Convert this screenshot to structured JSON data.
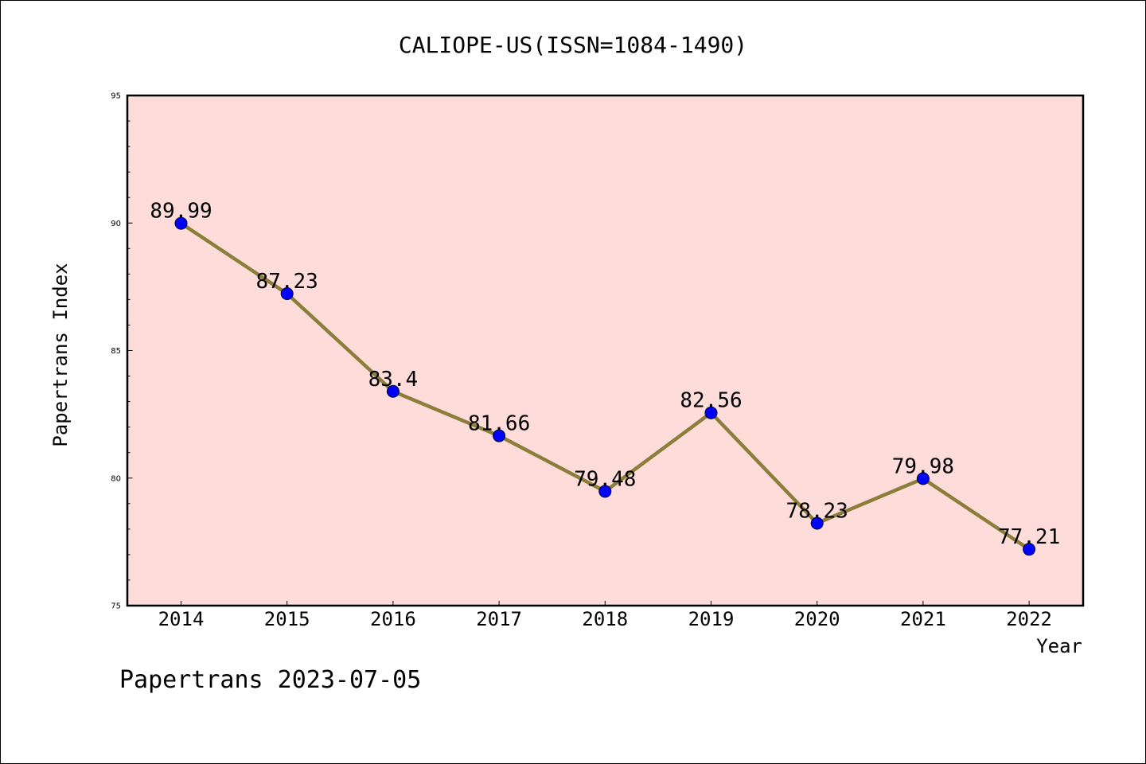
{
  "chart_data": {
    "type": "line",
    "title": "CALIOPE-US(ISSN=1084-1490)",
    "xlabel": "Year",
    "ylabel": "Papertrans Index",
    "x": [
      "2014",
      "2015",
      "2016",
      "2017",
      "2018",
      "2019",
      "2020",
      "2021",
      "2022"
    ],
    "series": [
      {
        "values": [
          89.99,
          87.23,
          83.4,
          81.66,
          79.48,
          82.56,
          78.23,
          79.98,
          77.21
        ],
        "data_labels": [
          "89.99",
          "87.23",
          "83.4",
          "81.66",
          "79.48",
          "82.56",
          "78.23",
          "79.98",
          "77.21"
        ],
        "line_color": "#8B7D3A",
        "marker_color": "#0000FF"
      }
    ],
    "ylim": [
      75,
      95
    ],
    "yticks": [
      75,
      80,
      85,
      90,
      95
    ],
    "ytick_labels": [
      "75",
      "80",
      "85",
      "90",
      "95"
    ],
    "plot_background": "#FDDCDA",
    "grid": false,
    "legend": "none"
  },
  "footer": {
    "note": "Papertrans 2023-07-05"
  }
}
